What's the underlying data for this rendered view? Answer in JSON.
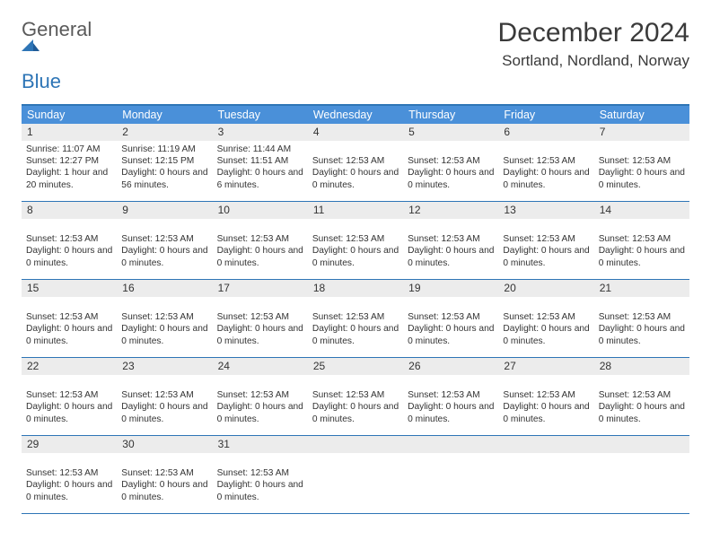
{
  "brand": {
    "word1": "General",
    "word2": "Blue"
  },
  "title": "December 2024",
  "location": "Sortland, Nordland, Norway",
  "colors": {
    "header_bar": "#4a90d9",
    "rule": "#2e75b6",
    "daynum_bg": "#ececec",
    "text": "#333333",
    "logo_gray": "#5a5a5a",
    "logo_blue": "#2e75b6"
  },
  "day_names": [
    "Sunday",
    "Monday",
    "Tuesday",
    "Wednesday",
    "Thursday",
    "Friday",
    "Saturday"
  ],
  "weeks": [
    [
      {
        "n": "1",
        "lines": [
          "Sunrise: 11:07 AM",
          "Sunset: 12:27 PM",
          "Daylight: 1 hour and 20 minutes."
        ]
      },
      {
        "n": "2",
        "lines": [
          "Sunrise: 11:19 AM",
          "Sunset: 12:15 PM",
          "Daylight: 0 hours and 56 minutes."
        ]
      },
      {
        "n": "3",
        "lines": [
          "Sunrise: 11:44 AM",
          "Sunset: 11:51 AM",
          "Daylight: 0 hours and 6 minutes."
        ]
      },
      {
        "n": "4",
        "lines": [
          "",
          "Sunset: 12:53 AM",
          "Daylight: 0 hours and 0 minutes."
        ]
      },
      {
        "n": "5",
        "lines": [
          "",
          "Sunset: 12:53 AM",
          "Daylight: 0 hours and 0 minutes."
        ]
      },
      {
        "n": "6",
        "lines": [
          "",
          "Sunset: 12:53 AM",
          "Daylight: 0 hours and 0 minutes."
        ]
      },
      {
        "n": "7",
        "lines": [
          "",
          "Sunset: 12:53 AM",
          "Daylight: 0 hours and 0 minutes."
        ]
      }
    ],
    [
      {
        "n": "8",
        "lines": [
          "",
          "Sunset: 12:53 AM",
          "Daylight: 0 hours and 0 minutes."
        ]
      },
      {
        "n": "9",
        "lines": [
          "",
          "Sunset: 12:53 AM",
          "Daylight: 0 hours and 0 minutes."
        ]
      },
      {
        "n": "10",
        "lines": [
          "",
          "Sunset: 12:53 AM",
          "Daylight: 0 hours and 0 minutes."
        ]
      },
      {
        "n": "11",
        "lines": [
          "",
          "Sunset: 12:53 AM",
          "Daylight: 0 hours and 0 minutes."
        ]
      },
      {
        "n": "12",
        "lines": [
          "",
          "Sunset: 12:53 AM",
          "Daylight: 0 hours and 0 minutes."
        ]
      },
      {
        "n": "13",
        "lines": [
          "",
          "Sunset: 12:53 AM",
          "Daylight: 0 hours and 0 minutes."
        ]
      },
      {
        "n": "14",
        "lines": [
          "",
          "Sunset: 12:53 AM",
          "Daylight: 0 hours and 0 minutes."
        ]
      }
    ],
    [
      {
        "n": "15",
        "lines": [
          "",
          "Sunset: 12:53 AM",
          "Daylight: 0 hours and 0 minutes."
        ]
      },
      {
        "n": "16",
        "lines": [
          "",
          "Sunset: 12:53 AM",
          "Daylight: 0 hours and 0 minutes."
        ]
      },
      {
        "n": "17",
        "lines": [
          "",
          "Sunset: 12:53 AM",
          "Daylight: 0 hours and 0 minutes."
        ]
      },
      {
        "n": "18",
        "lines": [
          "",
          "Sunset: 12:53 AM",
          "Daylight: 0 hours and 0 minutes."
        ]
      },
      {
        "n": "19",
        "lines": [
          "",
          "Sunset: 12:53 AM",
          "Daylight: 0 hours and 0 minutes."
        ]
      },
      {
        "n": "20",
        "lines": [
          "",
          "Sunset: 12:53 AM",
          "Daylight: 0 hours and 0 minutes."
        ]
      },
      {
        "n": "21",
        "lines": [
          "",
          "Sunset: 12:53 AM",
          "Daylight: 0 hours and 0 minutes."
        ]
      }
    ],
    [
      {
        "n": "22",
        "lines": [
          "",
          "Sunset: 12:53 AM",
          "Daylight: 0 hours and 0 minutes."
        ]
      },
      {
        "n": "23",
        "lines": [
          "",
          "Sunset: 12:53 AM",
          "Daylight: 0 hours and 0 minutes."
        ]
      },
      {
        "n": "24",
        "lines": [
          "",
          "Sunset: 12:53 AM",
          "Daylight: 0 hours and 0 minutes."
        ]
      },
      {
        "n": "25",
        "lines": [
          "",
          "Sunset: 12:53 AM",
          "Daylight: 0 hours and 0 minutes."
        ]
      },
      {
        "n": "26",
        "lines": [
          "",
          "Sunset: 12:53 AM",
          "Daylight: 0 hours and 0 minutes."
        ]
      },
      {
        "n": "27",
        "lines": [
          "",
          "Sunset: 12:53 AM",
          "Daylight: 0 hours and 0 minutes."
        ]
      },
      {
        "n": "28",
        "lines": [
          "",
          "Sunset: 12:53 AM",
          "Daylight: 0 hours and 0 minutes."
        ]
      }
    ],
    [
      {
        "n": "29",
        "lines": [
          "",
          "Sunset: 12:53 AM",
          "Daylight: 0 hours and 0 minutes."
        ]
      },
      {
        "n": "30",
        "lines": [
          "",
          "Sunset: 12:53 AM",
          "Daylight: 0 hours and 0 minutes."
        ]
      },
      {
        "n": "31",
        "lines": [
          "",
          "Sunset: 12:53 AM",
          "Daylight: 0 hours and 0 minutes."
        ]
      },
      {
        "n": "",
        "lines": []
      },
      {
        "n": "",
        "lines": []
      },
      {
        "n": "",
        "lines": []
      },
      {
        "n": "",
        "lines": []
      }
    ]
  ]
}
